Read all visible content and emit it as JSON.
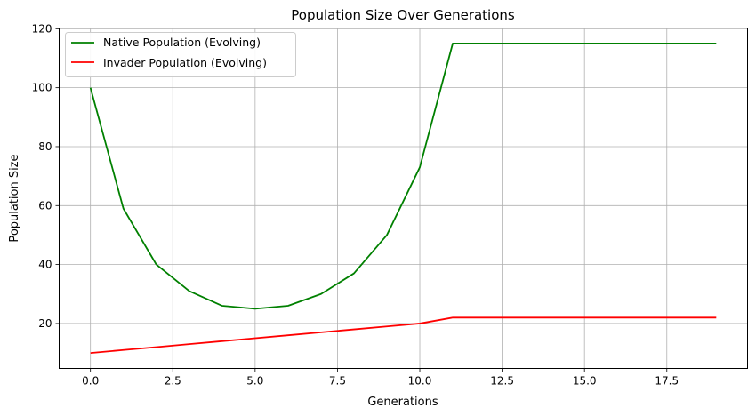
{
  "chart_data": {
    "type": "line",
    "title": "Population Size Over Generations",
    "xlabel": "Generations",
    "ylabel": "Population Size",
    "xlim": [
      -0.95,
      19.95
    ],
    "ylim": [
      4.75,
      120.25
    ],
    "xticks": [
      "0.0",
      "2.5",
      "5.0",
      "7.5",
      "10.0",
      "12.5",
      "15.0",
      "17.5"
    ],
    "xtick_values": [
      0,
      2.5,
      5,
      7.5,
      10,
      12.5,
      15,
      17.5
    ],
    "yticks": [
      "20",
      "40",
      "60",
      "80",
      "100",
      "120"
    ],
    "ytick_values": [
      20,
      40,
      60,
      80,
      100,
      120
    ],
    "grid": true,
    "legend_position": "top-left",
    "x": [
      0,
      1,
      2,
      3,
      4,
      5,
      6,
      7,
      8,
      9,
      10,
      11,
      12,
      13,
      14,
      15,
      16,
      17,
      18,
      19
    ],
    "series": [
      {
        "name": "Native Population (Evolving)",
        "color": "#008000",
        "values": [
          100,
          59,
          40,
          31,
          26,
          25,
          26,
          30,
          37,
          50,
          73,
          115,
          115,
          115,
          115,
          115,
          115,
          115,
          115,
          115
        ]
      },
      {
        "name": "Invader Population (Evolving)",
        "color": "#ff0000",
        "values": [
          10,
          11,
          12,
          13,
          14,
          15,
          16,
          17,
          18,
          19,
          20,
          22,
          22,
          22,
          22,
          22,
          22,
          22,
          22,
          22
        ]
      }
    ]
  }
}
